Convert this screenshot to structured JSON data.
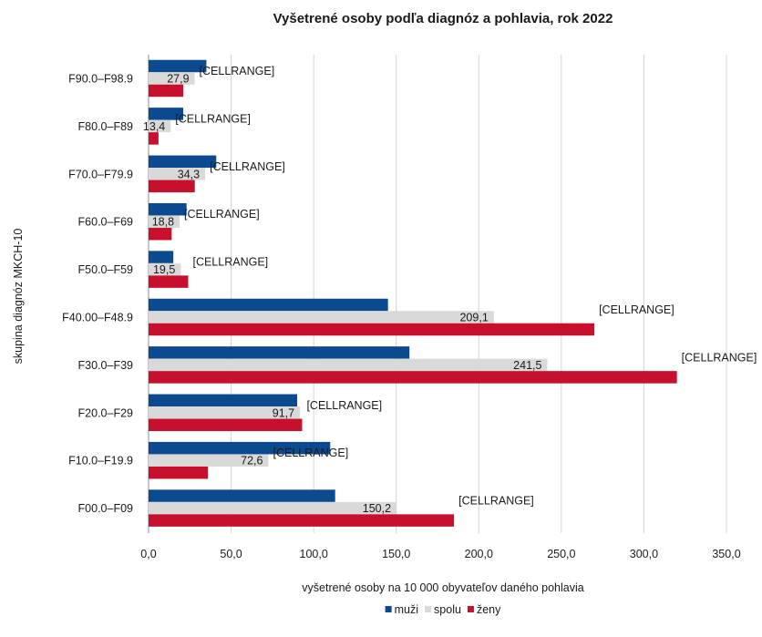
{
  "chart_data": {
    "type": "bar",
    "orientation": "horizontal",
    "title": "Vyšetrené osoby podľa diagnóz a pohlavia, rok 2022",
    "xlabel": "vyšetrené osoby na 10 000 obyvateľov daného pohlavia",
    "ylabel": "skupina diagnóz MKCH-10",
    "xlim": [
      0,
      350
    ],
    "xticks": [
      0,
      50,
      100,
      150,
      200,
      250,
      300,
      350
    ],
    "xtick_labels": [
      "0,0",
      "50,0",
      "100,0",
      "150,0",
      "200,0",
      "250,0",
      "300,0",
      "350,0"
    ],
    "grid": "vertical",
    "legend_position": "bottom",
    "categories": [
      "F90.0–F98.9",
      "F80.0–F89",
      "F70.0–F79.9",
      "F60.0–F69",
      "F50.0–F59",
      "F40.00–F48.9",
      "F30.0–F39",
      "F20.0–F29",
      "F10.0–F19.9",
      "F00.0–F09"
    ],
    "series": [
      {
        "name": "muži",
        "color": "#0b4a8f",
        "values": [
          35,
          21,
          41,
          23,
          15,
          145,
          158,
          90,
          110,
          113
        ]
      },
      {
        "name": "spolu",
        "color": "#d9d9d9",
        "values": [
          27.9,
          13.4,
          34.3,
          18.8,
          19.5,
          209.1,
          241.5,
          91.7,
          72.6,
          150.2
        ]
      },
      {
        "name": "ženy",
        "color": "#c8102e",
        "values": [
          21,
          6,
          28,
          14,
          24,
          270,
          320,
          93,
          36,
          185
        ]
      }
    ],
    "data_labels": {
      "spolu": [
        "27,9",
        "13,4",
        "34,3",
        "18,8",
        "19,5",
        "209,1",
        "241,5",
        "91,7",
        "72,6",
        "150,2"
      ],
      "cellrange": "[CELLRANGE]"
    }
  }
}
